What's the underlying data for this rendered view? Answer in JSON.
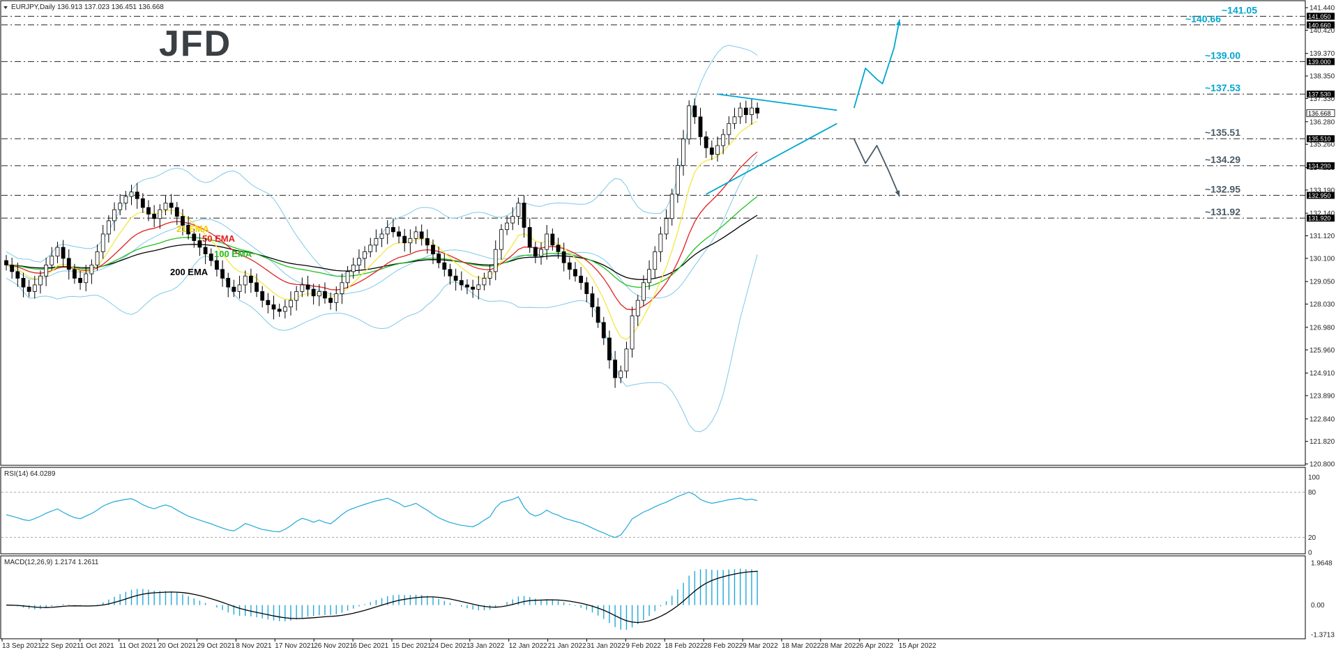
{
  "header": {
    "symbol_line": "EURJPY,Daily  136.913 137.023 136.451 136.668",
    "logo": "JFD"
  },
  "colors": {
    "bull": "#ffffff",
    "bear": "#000000",
    "bollinger": "#7ec8e8",
    "ema21": "#f5e642",
    "ema50": "#e02020",
    "ema100": "#20c020",
    "ema200": "#000000",
    "annotation": "#00a6cf",
    "level_text": "#1a6f8a",
    "indicator": "#20a8d8"
  },
  "chart_data": [
    {
      "type": "candlestick",
      "title": "EURJPY,Daily",
      "ohlc_header": {
        "open": 136.913,
        "high": 137.023,
        "low": 136.451,
        "close": 136.668
      },
      "y_ticks": [
        "141.440",
        "140.420",
        "139.370",
        "138.350",
        "137.330",
        "136.280",
        "135.260",
        "134.210",
        "133.190",
        "132.140",
        "131.120",
        "130.100",
        "129.050",
        "128.030",
        "126.980",
        "125.960",
        "124.910",
        "123.890",
        "122.840",
        "121.820",
        "120.800"
      ],
      "ylim": [
        120.8,
        141.44
      ],
      "x_ticks": [
        "13 Sep 2021",
        "22 Sep 2021",
        "1 Oct 2021",
        "11 Oct 2021",
        "20 Oct 2021",
        "29 Oct 2021",
        "8 Nov 2021",
        "17 Nov 2021",
        "26 Nov 2021",
        "6 Dec 2021",
        "15 Dec 2021",
        "24 Dec 2021",
        "3 Jan 2022",
        "12 Jan 2022",
        "21 Jan 2022",
        "31 Jan 2022",
        "9 Feb 2022",
        "18 Feb 2022",
        "28 Feb 2022",
        "9 Mar 2022",
        "18 Mar 2022",
        "28 Mar 2022",
        "6 Apr 2022",
        "15 Apr 2022"
      ],
      "close_series": [
        129.8,
        129.5,
        129.2,
        128.8,
        128.6,
        128.9,
        129.3,
        129.8,
        130.2,
        130.6,
        130.1,
        129.6,
        129.2,
        129.0,
        129.4,
        129.8,
        130.4,
        131.2,
        131.8,
        132.3,
        132.6,
        132.9,
        133.1,
        132.8,
        132.4,
        132.1,
        131.9,
        132.3,
        132.6,
        132.4,
        132.0,
        131.6,
        131.2,
        130.9,
        130.6,
        130.3,
        130.0,
        129.6,
        129.2,
        128.8,
        128.6,
        128.9,
        129.3,
        129.0,
        128.6,
        128.2,
        128.0,
        127.8,
        127.7,
        127.9,
        128.2,
        128.6,
        128.9,
        128.7,
        128.4,
        128.6,
        128.3,
        128.1,
        128.5,
        129.0,
        129.5,
        129.8,
        130.1,
        130.4,
        130.7,
        131.0,
        131.2,
        131.5,
        131.3,
        131.1,
        130.8,
        131.0,
        131.3,
        131.0,
        130.7,
        130.3,
        129.9,
        129.6,
        129.3,
        129.1,
        128.9,
        128.8,
        128.7,
        128.9,
        129.2,
        129.5,
        130.5,
        131.4,
        131.7,
        132.0,
        132.6,
        131.5,
        130.6,
        130.2,
        130.5,
        131.2,
        130.7,
        130.4,
        129.9,
        129.6,
        129.3,
        129.0,
        128.5,
        127.9,
        127.2,
        126.5,
        125.5,
        124.7,
        125.0,
        126.0,
        127.5,
        128.2,
        129.0,
        129.6,
        130.4,
        131.2,
        131.9,
        133.0,
        134.3,
        135.5,
        137.0,
        136.5,
        135.6,
        135.1,
        134.8,
        135.2,
        135.7,
        136.2,
        136.5,
        136.9,
        136.6,
        136.9,
        136.67
      ],
      "trendlines": [
        {
          "from": [
            125,
            137.53
          ],
          "to": [
            146,
            136.8
          ]
        },
        {
          "from": [
            123,
            133.0
          ],
          "to": [
            146,
            136.2
          ]
        }
      ],
      "scenario_up": [
        [
          149,
          136.9
        ],
        [
          151,
          138.7
        ],
        [
          153,
          138.2
        ],
        [
          154,
          138.0
        ],
        [
          156,
          139.6
        ],
        [
          157,
          140.9
        ]
      ],
      "scenario_down": [
        [
          149,
          135.5
        ],
        [
          151,
          134.4
        ],
        [
          153,
          135.2
        ],
        [
          155,
          134.1
        ],
        [
          157,
          132.9
        ]
      ],
      "horizontal_levels": [
        {
          "value": 141.05,
          "label": "~141.05",
          "tag": "141.050"
        },
        {
          "value": 140.66,
          "label": "~140.66",
          "tag": "140.660"
        },
        {
          "value": 139.0,
          "label": "~139.00",
          "tag": "139.000"
        },
        {
          "value": 137.53,
          "label": "~137.53",
          "tag": "137.530"
        },
        {
          "value": 135.51,
          "label": "~135.51",
          "tag": "135.510"
        },
        {
          "value": 134.29,
          "label": "~134.29",
          "tag": "134.290"
        },
        {
          "value": 132.95,
          "label": "~132.95",
          "tag": "132.950"
        },
        {
          "value": 131.92,
          "label": "~131.92",
          "tag": "131.920"
        }
      ],
      "price_tag": "136.668",
      "ema_labels": [
        {
          "text": "21 EMA",
          "key": "ema21"
        },
        {
          "text": "50 EMA",
          "key": "ema50"
        },
        {
          "text": "100 EMA",
          "key": "ema100"
        },
        {
          "text": "200 EMA",
          "key": "ema200"
        }
      ]
    },
    {
      "type": "line",
      "title": "RSI(14) 64.0289",
      "y_ticks": [
        "100",
        "80",
        "20",
        "0"
      ],
      "ylim": [
        0,
        100
      ],
      "levels": [
        80,
        20
      ]
    },
    {
      "type": "bar",
      "title": "MACD(12,26,9) 1.2174 1.2611",
      "y_ticks": [
        "1.9648",
        "0.00",
        "-1.3713"
      ],
      "ylim": [
        -1.3713,
        1.9648
      ]
    }
  ]
}
